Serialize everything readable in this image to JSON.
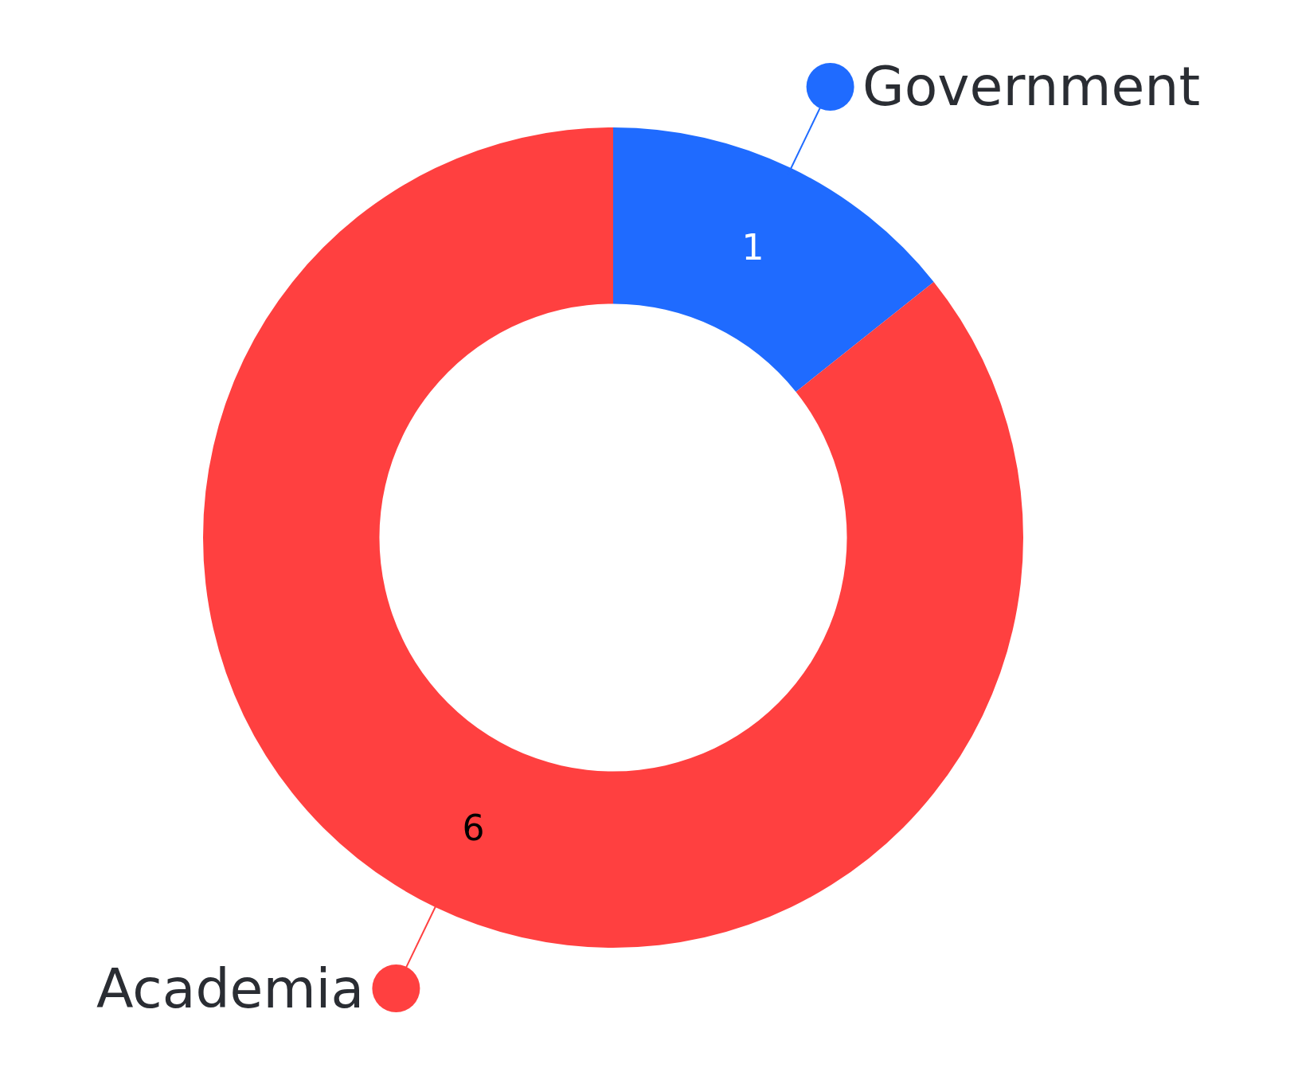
{
  "chart_data": {
    "type": "donut",
    "categories": [
      "Government",
      "Academia"
    ],
    "values": [
      1,
      6
    ],
    "colors": [
      "#1f6bff",
      "#ff4040"
    ],
    "data_labels": true,
    "legend": "top right"
  }
}
